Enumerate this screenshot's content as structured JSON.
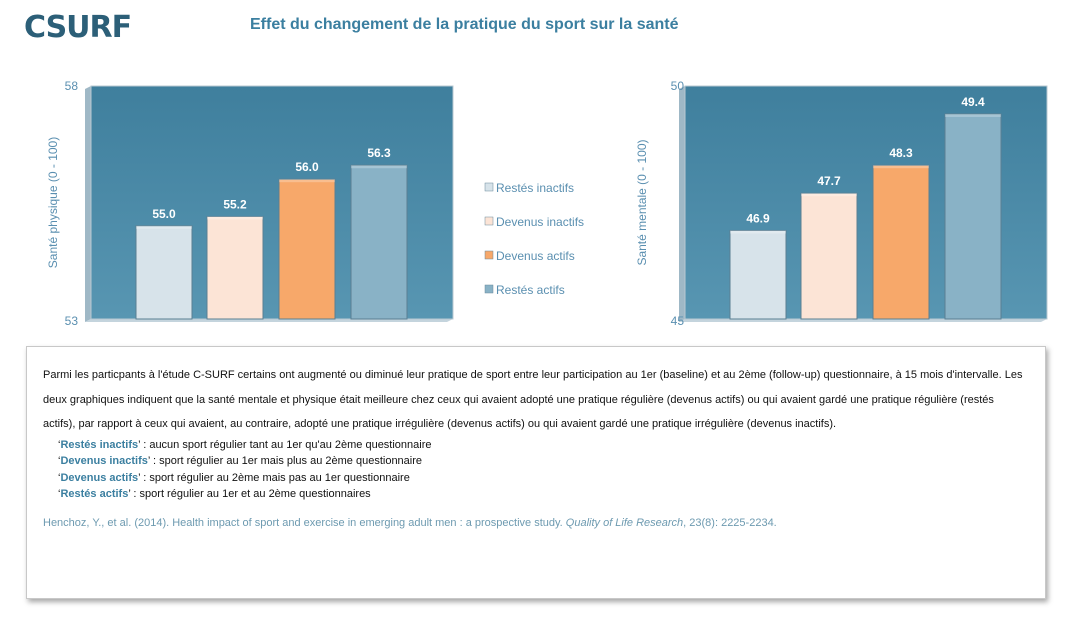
{
  "header": {
    "logo": "CSURF",
    "title": "Effet du changement de la pratique du sport sur la santé"
  },
  "colors": {
    "plot_bg": "#4a8aa7",
    "axis_text": "#5a8fb0",
    "accent_text": "#3b7fa0",
    "series": [
      "#d7e3ea",
      "#fce4d6",
      "#f7a86a",
      "#89b2c6"
    ]
  },
  "chart_data": [
    {
      "type": "bar",
      "categories": [
        "Restés inactifs",
        "Devenus inactifs",
        "Devenus actifs",
        "Restés actifs"
      ],
      "values": [
        55.0,
        55.2,
        56.0,
        56.3
      ],
      "data_labels": [
        "55.0",
        "55.2",
        "56.0",
        "56.3"
      ],
      "ylabel": "Santé physique  (0 - 100)",
      "ylim": [
        53,
        58
      ],
      "yticks": [
        "53",
        "58"
      ],
      "legend": "right"
    },
    {
      "type": "bar",
      "categories": [
        "Restés inactifs",
        "Devenus inactifs",
        "Devenus actifs",
        "Restés actifs"
      ],
      "values": [
        46.9,
        47.7,
        48.3,
        49.4
      ],
      "data_labels": [
        "46.9",
        "47.7",
        "48.3",
        "49.4"
      ],
      "ylabel": "Santé mentale  (0 - 100)",
      "ylim": [
        45,
        50
      ],
      "yticks": [
        "45",
        "50"
      ]
    }
  ],
  "legend": {
    "items": [
      "Restés inactifs",
      "Devenus inactifs",
      "Devenus actifs",
      "Restés actifs"
    ]
  },
  "note": {
    "paragraph": "Parmi les particpants à l'étude C-SURF certains ont augmenté ou diminué leur pratique de sport entre leur participation au 1er (baseline) et au 2ème (follow-up) questionnaire, à 15 mois d'intervalle. Les deux graphiques indiquent que la santé mentale et physique était meilleure chez ceux qui avaient adopté une pratique régulière (devenus actifs) ou qui avaient gardé une pratique régulière (restés actifs),  par rapport à ceux qui avaient,  au contraire, adopté une pratique irrégulière (devenus actifs) ou qui avaient gardé une pratique irrégulière (devenus inactifs).",
    "definitions": [
      {
        "term": "Restés inactifs",
        "desc": " : aucun sport régulier tant au 1er qu'au 2ème questionnaire"
      },
      {
        "term": "Devenus inactifs",
        "desc": " : sport régulier au 1er mais plus au 2ème questionnaire"
      },
      {
        "term": "Devenus actifs",
        "desc": " : sport régulier au 2ème mais pas au 1er questionnaire"
      },
      {
        "term": "Restés actifs",
        "desc": " : sport régulier au 1er et au 2ème questionnaires"
      }
    ],
    "reference": {
      "authors": "Henchoz, Y., et al. (2014). Health impact of sport and exercise in emerging adult men : a prospective study. ",
      "journal": "Quality of Life Research",
      "details": ",  23(8): 2225-2234."
    }
  }
}
